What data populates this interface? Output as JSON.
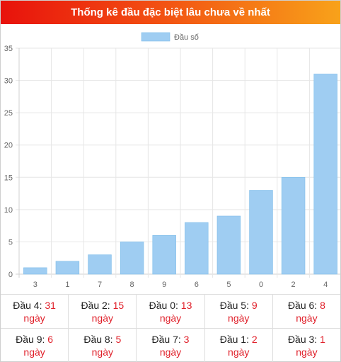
{
  "header": {
    "title": "Thống kê đầu đặc biệt lâu chưa về nhất"
  },
  "chart_data": {
    "type": "bar",
    "categories": [
      "3",
      "1",
      "7",
      "8",
      "9",
      "6",
      "5",
      "0",
      "2",
      "4"
    ],
    "series": [
      {
        "name": "Đầu số",
        "values": [
          1,
          2,
          3,
          5,
          6,
          8,
          9,
          13,
          15,
          31
        ],
        "color": "#9fcdf2"
      }
    ],
    "y_ticks": [
      0,
      5,
      10,
      15,
      20,
      25,
      30,
      35
    ],
    "ylim": [
      0,
      35
    ],
    "grid": true,
    "legend": "top-center"
  },
  "stats": {
    "unit": "ngày",
    "rows": [
      [
        {
          "label": "Đầu 4:",
          "value": "31"
        },
        {
          "label": "Đầu 2:",
          "value": "15"
        },
        {
          "label": "Đầu 0:",
          "value": "13"
        },
        {
          "label": "Đầu 5:",
          "value": "9"
        },
        {
          "label": "Đầu 6:",
          "value": "8"
        }
      ],
      [
        {
          "label": "Đầu 9:",
          "value": "6"
        },
        {
          "label": "Đầu 8:",
          "value": "5"
        },
        {
          "label": "Đầu 7:",
          "value": "3"
        },
        {
          "label": "Đầu 1:",
          "value": "2"
        },
        {
          "label": "Đầu 3:",
          "value": "1"
        }
      ]
    ]
  }
}
